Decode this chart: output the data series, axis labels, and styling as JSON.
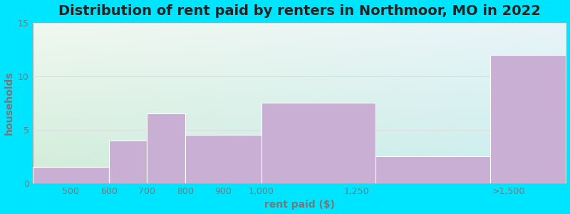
{
  "title": "Distribution of rent paid by renters in Northmoor, MO in 2022",
  "xlabel": "rent paid ($)",
  "ylabel": "households",
  "hist_values": [
    1.5,
    4.0,
    6.5,
    4.5,
    7.5,
    2.5,
    12.0
  ],
  "hist_lefts": [
    400,
    600,
    700,
    800,
    1000,
    1300,
    1600
  ],
  "hist_widths": [
    200,
    100,
    100,
    200,
    300,
    300,
    200
  ],
  "xtick_positions": [
    500,
    600,
    700,
    800,
    900,
    1000,
    1250
  ],
  "xtick_labels": [
    "500",
    "600",
    "700",
    "800",
    "900",
    "1,000",
    "1,250"
  ],
  "xlim": [
    400,
    1800
  ],
  "bar_color": "#c9afd4",
  "bar_edgecolor": "#ffffff",
  "ylim": [
    0,
    15
  ],
  "yticks": [
    0,
    5,
    10,
    15
  ],
  "bg_outer": "#00e5ff",
  "grad_top_left": "#f0f8f0",
  "grad_bottom_left": "#d0ecd8",
  "grad_top_right": "#e8f4f8",
  "grad_bottom_right": "#c8eef0",
  "title_fontsize": 14,
  "axis_label_fontsize": 10,
  "tick_fontsize": 9,
  "tick_color": "#777777",
  "label_color": "#777777"
}
